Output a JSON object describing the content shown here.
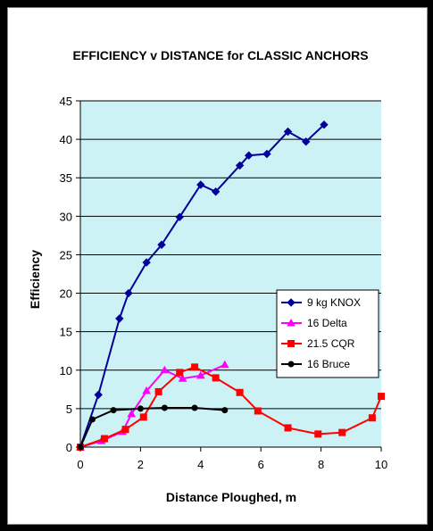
{
  "chart_data": {
    "type": "line",
    "title": "EFFICIENCY v DISTANCE  for CLASSIC ANCHORS",
    "xlabel": "Distance Ploughed, m",
    "ylabel": "Efficiency",
    "xlim": [
      0,
      10
    ],
    "ylim": [
      0,
      45
    ],
    "xticks": [
      0,
      2,
      4,
      6,
      8,
      10
    ],
    "yticks": [
      0,
      5,
      10,
      15,
      20,
      25,
      30,
      35,
      40,
      45
    ],
    "grid": "horizontal",
    "plot_background": "#ccf2f5",
    "legend_position": "right-middle",
    "series": [
      {
        "name": "9 kg KNOX",
        "color": "#000099",
        "marker": "diamond",
        "x": [
          0,
          0.6,
          1.3,
          1.6,
          2.2,
          2.7,
          3.3,
          4.0,
          4.5,
          5.3,
          5.6,
          6.2,
          6.9,
          7.5,
          8.1
        ],
        "y": [
          0,
          6.8,
          16.7,
          20.0,
          24.0,
          26.3,
          29.9,
          34.1,
          33.2,
          36.6,
          37.9,
          38.1,
          41.0,
          39.7,
          41.9
        ]
      },
      {
        "name": "16 Delta",
        "color": "#ff00ff",
        "marker": "triangle",
        "x": [
          0,
          0.7,
          1.4,
          1.7,
          2.2,
          2.8,
          3.4,
          4.0,
          4.8
        ],
        "y": [
          0,
          0.8,
          2.0,
          4.3,
          7.3,
          10.0,
          8.9,
          9.3,
          10.7
        ]
      },
      {
        "name": "21.5 CQR",
        "color": "#ff0000",
        "marker": "square",
        "x": [
          0,
          0.8,
          1.5,
          2.1,
          2.6,
          3.3,
          3.8,
          4.5,
          5.3,
          5.9,
          6.9,
          7.9,
          8.7,
          9.7,
          10.0
        ],
        "y": [
          0,
          1.1,
          2.3,
          3.9,
          7.2,
          9.7,
          10.4,
          9.0,
          7.1,
          4.7,
          2.5,
          1.7,
          1.9,
          3.8,
          6.6
        ]
      },
      {
        "name": "16 Bruce",
        "color": "#000000",
        "marker": "circle",
        "x": [
          0,
          0.4,
          1.1,
          2.0,
          2.8,
          3.8,
          4.8
        ],
        "y": [
          0,
          3.6,
          4.8,
          5.0,
          5.1,
          5.1,
          4.8
        ]
      }
    ]
  }
}
